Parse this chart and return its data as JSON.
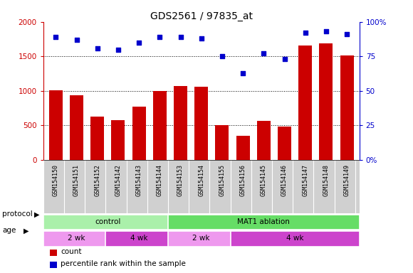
{
  "title": "GDS2561 / 97835_at",
  "samples": [
    "GSM154150",
    "GSM154151",
    "GSM154152",
    "GSM154142",
    "GSM154143",
    "GSM154144",
    "GSM154153",
    "GSM154154",
    "GSM154155",
    "GSM154156",
    "GSM154145",
    "GSM154146",
    "GSM154147",
    "GSM154148",
    "GSM154149"
  ],
  "counts": [
    1010,
    940,
    630,
    580,
    770,
    1000,
    1070,
    1060,
    500,
    350,
    560,
    480,
    1660,
    1690,
    1510
  ],
  "percentiles": [
    89,
    87,
    81,
    80,
    85,
    89,
    89,
    88,
    75,
    63,
    77,
    73,
    92,
    93,
    91
  ],
  "ylim_left": [
    0,
    2000
  ],
  "ylim_right": [
    0,
    100
  ],
  "yticks_left": [
    0,
    500,
    1000,
    1500,
    2000
  ],
  "yticks_right": [
    0,
    25,
    50,
    75,
    100
  ],
  "bar_color": "#cc0000",
  "dot_color": "#0000cc",
  "protocol_groups": [
    {
      "label": "control",
      "start": 0,
      "end": 6,
      "color": "#aaf0aa"
    },
    {
      "label": "MAT1 ablation",
      "start": 6,
      "end": 15,
      "color": "#66dd66"
    }
  ],
  "age_groups": [
    {
      "label": "2 wk",
      "start": 0,
      "end": 3,
      "color": "#ee99ee"
    },
    {
      "label": "4 wk",
      "start": 3,
      "end": 6,
      "color": "#cc44cc"
    },
    {
      "label": "2 wk",
      "start": 6,
      "end": 9,
      "color": "#ee99ee"
    },
    {
      "label": "4 wk",
      "start": 9,
      "end": 15,
      "color": "#cc44cc"
    }
  ],
  "legend_items": [
    {
      "label": "count",
      "color": "#cc0000"
    },
    {
      "label": "percentile rank within the sample",
      "color": "#0000cc"
    }
  ],
  "tick_bg": "#d0d0d0",
  "plot_bg": "#ffffff",
  "fig_bg": "#ffffff"
}
